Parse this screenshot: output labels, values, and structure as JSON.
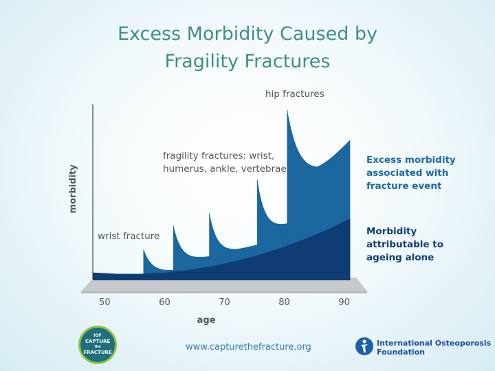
{
  "title": {
    "line1": "Excess Morbidity Caused by",
    "line2": "Fragility Fractures"
  },
  "chart_data": {
    "type": "area",
    "xlabel": "age",
    "ylabel": "morbidity",
    "xlim": [
      48,
      92
    ],
    "x_ticks": [
      50,
      60,
      70,
      80,
      90
    ],
    "series": [
      {
        "name": "Morbidity attributable to ageing alone",
        "color": "#0f3d73",
        "x": [
          48,
          52,
          56,
          60,
          64,
          68,
          72,
          76,
          80,
          84,
          88,
          91
        ],
        "values": [
          3,
          2.5,
          2.5,
          3,
          4,
          5.5,
          7.5,
          10,
          13,
          16.5,
          20.5,
          24
        ]
      },
      {
        "name": "Excess morbidity associated with fracture event",
        "color": "#1c679f",
        "events": [
          {
            "label": "wrist fracture",
            "age": 56.5,
            "peak": 12
          },
          {
            "label": "fragility fractures: wrist, humerus, ankle, vertebrae",
            "age": 61.5,
            "peak": 21
          },
          {
            "label": "fragility fractures: wrist, humerus, ankle, vertebrae",
            "age": 67.5,
            "peak": 26
          },
          {
            "label": "fragility fractures: wrist, humerus, ankle, vertebrae",
            "age": 75.5,
            "peak": 39
          },
          {
            "label": "hip fractures",
            "age": 80.5,
            "peak": 66
          }
        ]
      }
    ],
    "annotations": {
      "wrist": "wrist fracture",
      "fragility_line1": "fragility fractures: wrist,",
      "fragility_line2": "humerus, ankle, vertebrae",
      "hip": "hip fractures"
    },
    "legend": {
      "excess_line1": "Excess morbidity",
      "excess_line2": "associated with",
      "excess_line3": "fracture event",
      "excess_color": "#1c6aa4",
      "ageing_line1": "Morbidity",
      "ageing_line2": "attributable to",
      "ageing_line3": "ageing alone",
      "ageing_color": "#0f3d73"
    }
  },
  "footer": {
    "url": "www.capturethefracture.org",
    "badge_top": "IOF",
    "badge_line1": "CAPTURE",
    "badge_line2": "the",
    "badge_line3": "FRACTURE",
    "org_line1": "International Osteoporosis",
    "org_line2": "Foundation"
  }
}
